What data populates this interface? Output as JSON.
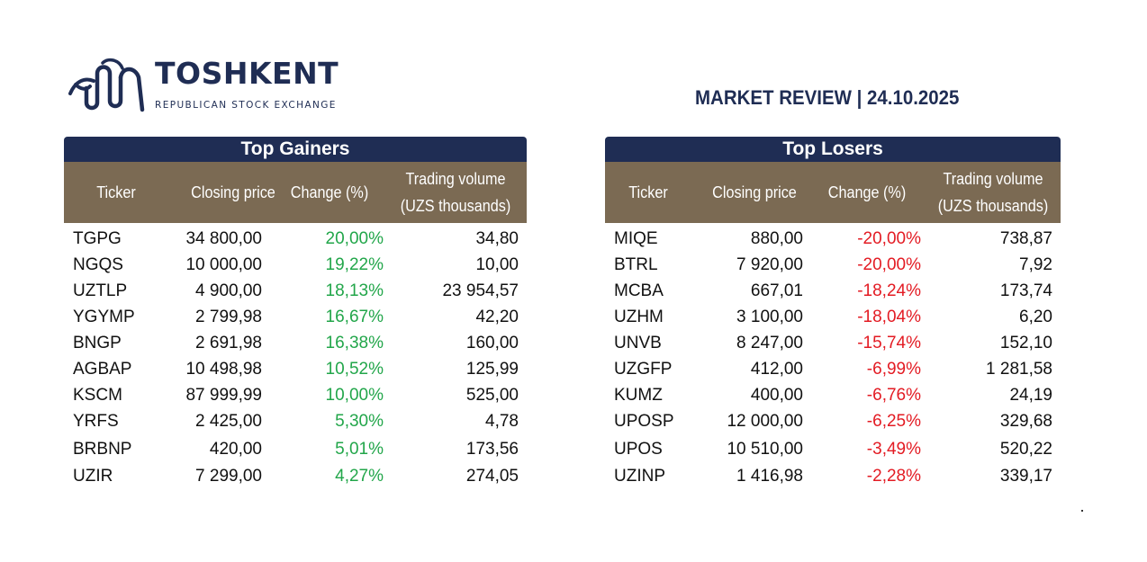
{
  "header": {
    "brand": "TOSHKENT",
    "subtitle": "REPUBLICAN STOCK EXCHANGE",
    "report_title": "MARKET REVIEW | 24.10.2025"
  },
  "colors": {
    "navy": "#1f2d54",
    "header_brown": "#7b6a53",
    "positive": "#22a64a",
    "negative": "#e31b23"
  },
  "gainers": {
    "title": "Top Gainers",
    "columns": [
      "Ticker",
      "Closing price",
      "Change (%)",
      "Trading volume (UZS thousands)"
    ],
    "col_vol_line1": "Trading volume",
    "col_vol_line2": "(UZS thousands)",
    "rows": [
      {
        "ticker": "TGPG",
        "price": "34 800,00",
        "change": "20,00%",
        "volume": "34,80"
      },
      {
        "ticker": "NGQS",
        "price": "10 000,00",
        "change": "19,22%",
        "volume": "10,00"
      },
      {
        "ticker": "UZTLP",
        "price": "4 900,00",
        "change": "18,13%",
        "volume": "23 954,57"
      },
      {
        "ticker": "YGYMP",
        "price": "2 799,98",
        "change": "16,67%",
        "volume": "42,20"
      },
      {
        "ticker": "BNGP",
        "price": "2 691,98",
        "change": "16,38%",
        "volume": "160,00"
      },
      {
        "ticker": "AGBAP",
        "price": "10 498,98",
        "change": "10,52%",
        "volume": "125,99"
      },
      {
        "ticker": "KSCM",
        "price": "87 999,99",
        "change": "10,00%",
        "volume": "525,00"
      },
      {
        "ticker": "YRFS",
        "price": "2 425,00",
        "change": "5,30%",
        "volume": "4,78"
      },
      {
        "ticker": "BRBNP",
        "price": "420,00",
        "change": "5,01%",
        "volume": "173,56"
      },
      {
        "ticker": "UZIR",
        "price": "7 299,00",
        "change": "4,27%",
        "volume": "274,05"
      }
    ]
  },
  "losers": {
    "title": "Top Losers",
    "columns": [
      "Ticker",
      "Closing price",
      "Change (%)",
      "Trading volume (UZS thousands)"
    ],
    "col_vol_line1": "Trading volume",
    "col_vol_line2": "(UZS thousands)",
    "rows": [
      {
        "ticker": "MIQE",
        "price": "880,00",
        "change": "-20,00%",
        "volume": "738,87"
      },
      {
        "ticker": "BTRL",
        "price": "7 920,00",
        "change": "-20,00%",
        "volume": "7,92"
      },
      {
        "ticker": "MCBA",
        "price": "667,01",
        "change": "-18,24%",
        "volume": "173,74"
      },
      {
        "ticker": "UZHM",
        "price": "3 100,00",
        "change": "-18,04%",
        "volume": "6,20"
      },
      {
        "ticker": "UNVB",
        "price": "8 247,00",
        "change": "-15,74%",
        "volume": "152,10"
      },
      {
        "ticker": "UZGFP",
        "price": "412,00",
        "change": "-6,99%",
        "volume": "1 281,58"
      },
      {
        "ticker": "KUMZ",
        "price": "400,00",
        "change": "-6,76%",
        "volume": "24,19"
      },
      {
        "ticker": "UPOSP",
        "price": "12 000,00",
        "change": "-6,25%",
        "volume": "329,68"
      },
      {
        "ticker": "UPOS",
        "price": "10 510,00",
        "change": "-3,49%",
        "volume": "520,22"
      },
      {
        "ticker": "UZINP",
        "price": "1 416,98",
        "change": "-2,28%",
        "volume": "339,17"
      }
    ]
  }
}
